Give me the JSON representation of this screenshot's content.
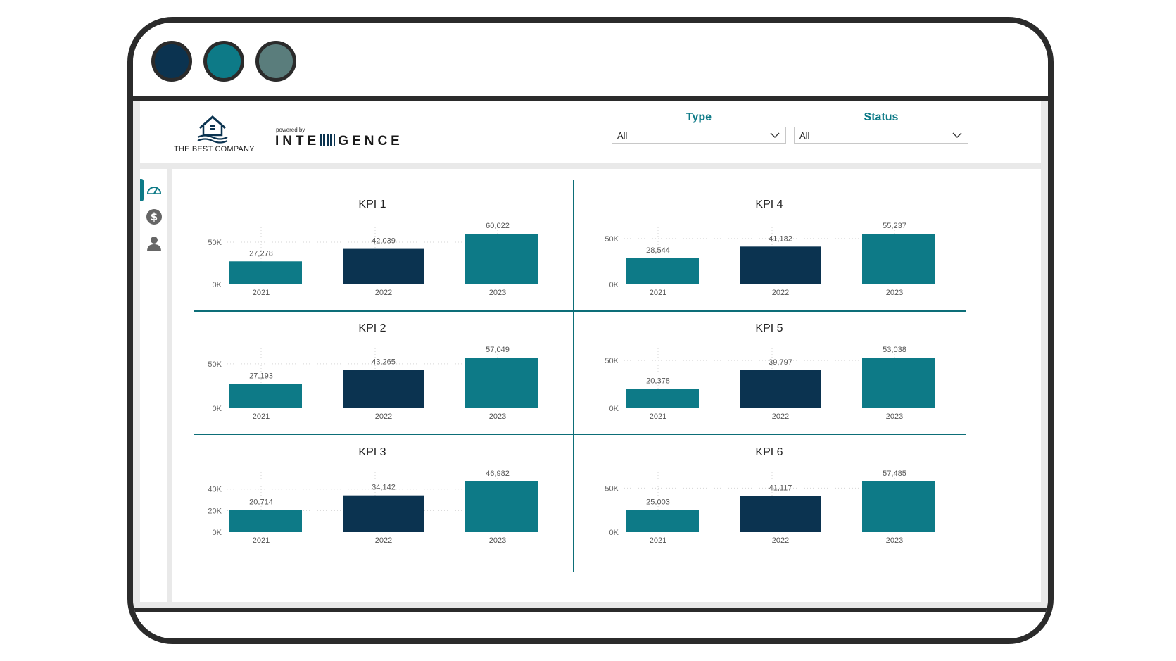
{
  "window": {
    "dots": [
      {
        "name": "window-dot-navy",
        "color": "#0b3350"
      },
      {
        "name": "window-dot-teal",
        "color": "#0d7a87"
      },
      {
        "name": "window-dot-slate",
        "color": "#5a7d7c"
      }
    ]
  },
  "header": {
    "company_name": "THE BEST COMPANY",
    "powered_by": "powered by",
    "brand": "INTE",
    "brand_suffix": "GENCE",
    "logo_icon": "house-icon"
  },
  "filters": {
    "type": {
      "title": "Type",
      "value": "All"
    },
    "status": {
      "title": "Status",
      "value": "All"
    }
  },
  "sidebar": {
    "items": [
      {
        "icon": "speedometer-icon",
        "active": true
      },
      {
        "icon": "dollar-icon",
        "active": false
      },
      {
        "icon": "user-icon",
        "active": false
      }
    ]
  },
  "colors": {
    "teal": "#0d7a87",
    "navy": "#0b3350",
    "divider": "#0d6e78"
  },
  "chart_data": [
    {
      "type": "bar",
      "title": "KPI 1",
      "categories": [
        "2021",
        "2022",
        "2023"
      ],
      "values": [
        27278,
        42039,
        60022
      ],
      "labels": [
        "27,278",
        "42,039",
        "60,022"
      ],
      "yticks": [
        0,
        50000
      ],
      "ytick_labels": [
        "0K",
        "50K"
      ],
      "ylim": [
        0,
        60022
      ]
    },
    {
      "type": "bar",
      "title": "KPI 2",
      "categories": [
        "2021",
        "2022",
        "2023"
      ],
      "values": [
        27193,
        43265,
        57049
      ],
      "labels": [
        "27,193",
        "43,265",
        "57,049"
      ],
      "yticks": [
        0,
        50000
      ],
      "ytick_labels": [
        "0K",
        "50K"
      ],
      "ylim": [
        0,
        57049
      ]
    },
    {
      "type": "bar",
      "title": "KPI 3",
      "categories": [
        "2021",
        "2022",
        "2023"
      ],
      "values": [
        20714,
        34142,
        46982
      ],
      "labels": [
        "20,714",
        "34,142",
        "46,982"
      ],
      "yticks": [
        0,
        20000,
        40000
      ],
      "ytick_labels": [
        "0K",
        "20K",
        "40K"
      ],
      "ylim": [
        0,
        46982
      ]
    },
    {
      "type": "bar",
      "title": "KPI 4",
      "categories": [
        "2021",
        "2022",
        "2023"
      ],
      "values": [
        28544,
        41182,
        55237
      ],
      "labels": [
        "28,544",
        "41,182",
        "55,237"
      ],
      "yticks": [
        0,
        50000
      ],
      "ytick_labels": [
        "0K",
        "50K"
      ],
      "ylim": [
        0,
        55237
      ]
    },
    {
      "type": "bar",
      "title": "KPI 5",
      "categories": [
        "2021",
        "2022",
        "2023"
      ],
      "values": [
        20378,
        39797,
        53038
      ],
      "labels": [
        "20,378",
        "39,797",
        "53,038"
      ],
      "yticks": [
        0,
        50000
      ],
      "ytick_labels": [
        "0K",
        "50K"
      ],
      "ylim": [
        0,
        53038
      ]
    },
    {
      "type": "bar",
      "title": "KPI 6",
      "categories": [
        "2021",
        "2022",
        "2023"
      ],
      "values": [
        25003,
        41117,
        57485
      ],
      "labels": [
        "25,003",
        "41,117",
        "57,485"
      ],
      "yticks": [
        0,
        50000
      ],
      "ytick_labels": [
        "0K",
        "50K"
      ],
      "ylim": [
        0,
        57485
      ]
    }
  ]
}
